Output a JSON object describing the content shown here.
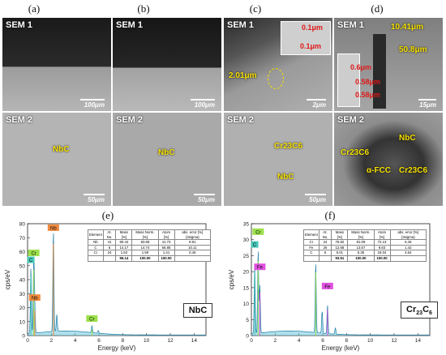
{
  "panels": {
    "a": {
      "label": "(a)",
      "sem1": "SEM 1",
      "sem2": "SEM 2",
      "scale1": "100μm",
      "scale2": "50μm",
      "ann2": "NbC"
    },
    "b": {
      "label": "(b)",
      "sem1": "SEM 1",
      "sem2": "SEM 2",
      "scale1": "100μm",
      "scale2": "50μm",
      "ann2": "NbC"
    },
    "c": {
      "label": "(c)",
      "sem1": "SEM 1",
      "sem2": "SEM 2",
      "scale1": "2μm",
      "scale2": "50μm",
      "ann1_a": "0.1μm",
      "ann1_b": "0.1μm",
      "ann1_c": "2.01μm",
      "ann2_a": "Cr23C6",
      "ann2_b": "NbC"
    },
    "d": {
      "label": "(d)",
      "sem1": "SEM 1",
      "sem2": "SEM 2",
      "scale1": "15μm",
      "scale2": "",
      "ann1_a": "10.41μm",
      "ann1_b": "50.8μm",
      "ann1_c": "0.6μm",
      "ann1_d": "0.58μm",
      "ann1_e": "0.58μm",
      "ann2_a": "Cr23C6",
      "ann2_b": "NbC",
      "ann2_c": "α-FCC",
      "ann2_d": "Cr23C6"
    },
    "e": {
      "label": "(e)",
      "badge": "NbC"
    },
    "f": {
      "label": "(f)",
      "badge": "Cr23C6"
    }
  },
  "chart_data": [
    {
      "type": "line",
      "panel": "(e)",
      "xlabel": "Energy (keV)",
      "ylabel": "cps/eV",
      "xlim": [
        0,
        15
      ],
      "ylim": [
        0,
        80
      ],
      "xticks": [
        "0",
        "2",
        "4",
        "6",
        "8",
        "10",
        "12",
        "14"
      ],
      "yticks": [
        "0",
        "10",
        "20",
        "30",
        "40",
        "50",
        "60",
        "70",
        "80"
      ],
      "peaks": [
        {
          "x": 0.28,
          "y": 47,
          "label": "C"
        },
        {
          "x": 0.52,
          "y": 52,
          "label": "Cr"
        },
        {
          "x": 0.6,
          "y": 20,
          "label": "Nb"
        },
        {
          "x": 2.17,
          "y": 73,
          "label": "Nb"
        },
        {
          "x": 2.46,
          "y": 12,
          "label": ""
        },
        {
          "x": 5.41,
          "y": 5,
          "label": "Cr"
        },
        {
          "x": 5.95,
          "y": 2,
          "label": ""
        }
      ],
      "table": {
        "headers": [
          "Element",
          "At. No.",
          "Mass [%]",
          "Mass Norm. [%]",
          "Atom [%]",
          "abs. error [%] (3sigma)"
        ],
        "rows": [
          [
            "Nb",
            "41",
            "80.44",
            "83.68",
            "41.73",
            "8.91"
          ],
          [
            "C",
            "6",
            "14.17",
            "14.74",
            "56.85",
            "10.11"
          ],
          [
            "Cr",
            "24",
            "1.53",
            "1.59",
            "1.41",
            "0.46"
          ]
        ],
        "total": [
          "",
          "",
          "96.14",
          "100.00",
          "100.00",
          ""
        ]
      }
    },
    {
      "type": "line",
      "panel": "(f)",
      "xlabel": "Energy (keV)",
      "ylabel": "cps/eV",
      "xlim": [
        0,
        15
      ],
      "ylim": [
        0,
        35
      ],
      "xticks": [
        "0",
        "2",
        "4",
        "6",
        "8",
        "10",
        "12",
        "14"
      ],
      "yticks": [
        "0",
        "5",
        "10",
        "15",
        "20",
        "25",
        "30",
        "35"
      ],
      "peaks": [
        {
          "x": 0.28,
          "y": 22,
          "label": "C"
        },
        {
          "x": 0.57,
          "y": 26,
          "label": "Cr"
        },
        {
          "x": 0.71,
          "y": 15,
          "label": "Fe"
        },
        {
          "x": 5.41,
          "y": 22,
          "label": "Cr"
        },
        {
          "x": 5.95,
          "y": 7,
          "label": ""
        },
        {
          "x": 6.4,
          "y": 9,
          "label": "Fe"
        },
        {
          "x": 7.06,
          "y": 2,
          "label": ""
        }
      ],
      "table": {
        "headers": [
          "Element",
          "At. No.",
          "Mass [%]",
          "Mass Norm. [%]",
          "Atom [%]",
          "abs. error [%] (3sigma)"
        ],
        "rows": [
          [
            "Cr",
            "24",
            "75.82",
            "81.08",
            "72.13",
            "6.46"
          ],
          [
            "Fe",
            "26",
            "12.68",
            "13.57",
            "9.83",
            "1.42"
          ],
          [
            "C",
            "6",
            "5.01",
            "5.35",
            "18.04",
            "4.64"
          ]
        ],
        "total": [
          "",
          "",
          "93.51",
          "100.00",
          "100.00",
          ""
        ]
      }
    }
  ]
}
